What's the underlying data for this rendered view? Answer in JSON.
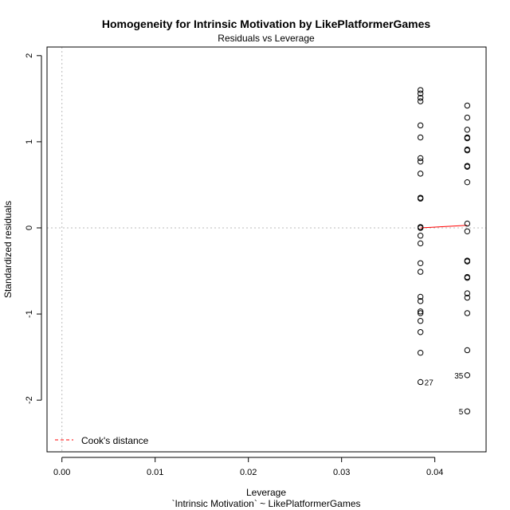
{
  "chart_data": {
    "type": "scatter",
    "title": "Homogeneity for Intrinsic Motivation by LikePlatformerGames",
    "subtitle": "Residuals vs Leverage",
    "xlabel": "Leverage",
    "xlabel2": "`Intrinsic Motivation` ~ LikePlatformerGames",
    "ylabel": "Standardized residuals",
    "xlim": [
      -0.0016,
      0.0455
    ],
    "ylim": [
      -2.6,
      2.1
    ],
    "x_ticks": [
      0.0,
      0.01,
      0.02,
      0.03,
      0.04
    ],
    "x_tick_labels": [
      "0.00",
      "0.01",
      "0.02",
      "0.03",
      "0.04"
    ],
    "y_ticks": [
      -2,
      -1,
      0,
      1,
      2
    ],
    "y_tick_labels": [
      "-2",
      "-1",
      "0",
      "1",
      "2"
    ],
    "grid": false,
    "points": [
      {
        "x": 0.03846,
        "y": 1.6
      },
      {
        "x": 0.03846,
        "y": 1.56
      },
      {
        "x": 0.03846,
        "y": 1.51
      },
      {
        "x": 0.03846,
        "y": 1.47
      },
      {
        "x": 0.03846,
        "y": 1.19
      },
      {
        "x": 0.03846,
        "y": 1.05
      },
      {
        "x": 0.03846,
        "y": 0.81
      },
      {
        "x": 0.03846,
        "y": 0.77
      },
      {
        "x": 0.03846,
        "y": 0.63
      },
      {
        "x": 0.03846,
        "y": 0.35
      },
      {
        "x": 0.03846,
        "y": 0.34
      },
      {
        "x": 0.03846,
        "y": 0.01
      },
      {
        "x": 0.03846,
        "y": 0.0
      },
      {
        "x": 0.03846,
        "y": -0.09
      },
      {
        "x": 0.03846,
        "y": -0.18
      },
      {
        "x": 0.03846,
        "y": -0.41
      },
      {
        "x": 0.03846,
        "y": -0.51
      },
      {
        "x": 0.03846,
        "y": -0.8
      },
      {
        "x": 0.03846,
        "y": -0.85
      },
      {
        "x": 0.03846,
        "y": -0.97
      },
      {
        "x": 0.03846,
        "y": -0.99
      },
      {
        "x": 0.03846,
        "y": -1.08
      },
      {
        "x": 0.03846,
        "y": -1.21
      },
      {
        "x": 0.03846,
        "y": -1.45
      },
      {
        "x": 0.03846,
        "y": -1.79,
        "label": "27"
      },
      {
        "x": 0.04348,
        "y": 1.42
      },
      {
        "x": 0.04348,
        "y": 1.28
      },
      {
        "x": 0.04348,
        "y": 1.14
      },
      {
        "x": 0.04348,
        "y": 1.05
      },
      {
        "x": 0.04348,
        "y": 1.04
      },
      {
        "x": 0.04348,
        "y": 0.91
      },
      {
        "x": 0.04348,
        "y": 0.9
      },
      {
        "x": 0.04348,
        "y": 0.72
      },
      {
        "x": 0.04348,
        "y": 0.71
      },
      {
        "x": 0.04348,
        "y": 0.53
      },
      {
        "x": 0.04348,
        "y": 0.05
      },
      {
        "x": 0.04348,
        "y": -0.04
      },
      {
        "x": 0.04348,
        "y": -0.38
      },
      {
        "x": 0.04348,
        "y": -0.39
      },
      {
        "x": 0.04348,
        "y": -0.57
      },
      {
        "x": 0.04348,
        "y": -0.58
      },
      {
        "x": 0.04348,
        "y": -0.76
      },
      {
        "x": 0.04348,
        "y": -0.81
      },
      {
        "x": 0.04348,
        "y": -0.99
      },
      {
        "x": 0.04348,
        "y": -1.42
      },
      {
        "x": 0.04348,
        "y": -1.71,
        "label": "35"
      },
      {
        "x": 0.04348,
        "y": -2.13,
        "label": "5"
      }
    ],
    "smooth_line": {
      "x": [
        0.03846,
        0.04348
      ],
      "y": [
        0.0,
        0.03
      ],
      "color": "#ff0000"
    },
    "reference_lines": {
      "h": 0,
      "v": 0,
      "color": "#bbbbbb"
    },
    "legend": {
      "label": "Cook's distance",
      "placement": "bottom-left",
      "color": "#ff0000"
    }
  }
}
